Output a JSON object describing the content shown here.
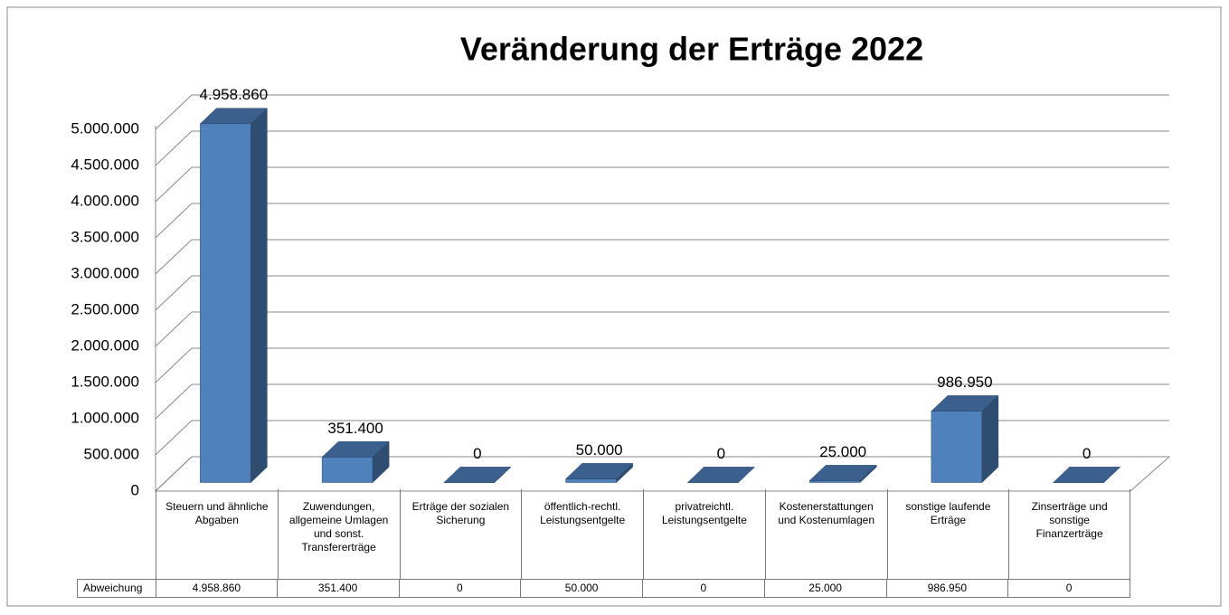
{
  "chart_data": {
    "type": "bar3d",
    "title": "Veränderung der Erträge 2022",
    "categories": [
      "Steuern und ähnliche Abgaben",
      "Zuwendungen, allgemeine Umlagen und sonst. Transfererträge",
      "Erträge der sozialen Sicherung",
      "öffentlich-rechtl. Leistungsentgelte",
      "privatreichtl. Leistungsentgelte",
      "Kostenerstattungen und Kostenumlagen",
      "sonstige laufende Erträge",
      "Zinserträge und sonstige Finanzerträge"
    ],
    "series": [
      {
        "name": "Abweichung",
        "color": "#4f81bd",
        "values": [
          4958860,
          351400,
          0,
          50000,
          0,
          25000,
          986950,
          0
        ],
        "value_labels": [
          "4.958.860",
          "351.400",
          "0",
          "50.000",
          "0",
          "25.000",
          "986.950",
          "0"
        ]
      }
    ],
    "ylim": [
      0,
      5000000
    ],
    "yticks": [
      0,
      {
        "value": 500000,
        "label": "500.000"
      },
      {
        "value": 1000000,
        "label": "1.000.000"
      },
      {
        "value": 1500000,
        "label": "1.500.000"
      },
      {
        "value": 2000000,
        "label": "2.000.000"
      },
      {
        "value": 2500000,
        "label": "2.500.000"
      },
      {
        "value": 3000000,
        "label": "3.000.000"
      },
      {
        "value": 3500000,
        "label": "3.500.000"
      },
      {
        "value": 4000000,
        "label": "4.000.000"
      },
      {
        "value": 4500000,
        "label": "4.500.000"
      },
      {
        "value": 5000000,
        "label": "5.000.000"
      }
    ],
    "grid": true
  }
}
